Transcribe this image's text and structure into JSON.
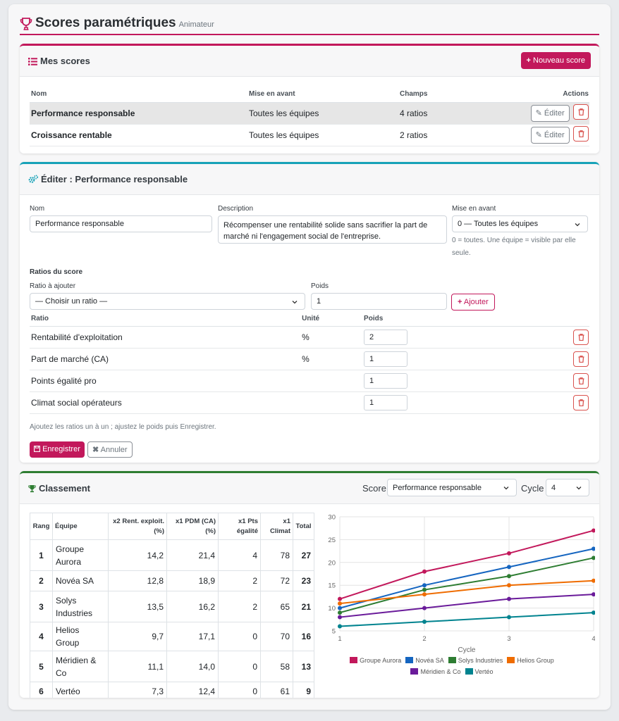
{
  "header": {
    "title": "Scores paramétriques",
    "subtitle": "Animateur"
  },
  "scores_card": {
    "title": "Mes scores",
    "new_button": "Nouveau score",
    "columns": [
      "Nom",
      "Mise en avant",
      "Champs",
      "Actions"
    ],
    "rows": [
      {
        "name": "Performance responsable",
        "highlight": "Toutes les équipes",
        "fields": "4 ratios",
        "edit": "Éditer",
        "selected": true
      },
      {
        "name": "Croissance rentable",
        "highlight": "Toutes les équipes",
        "fields": "2 ratios",
        "edit": "Éditer",
        "selected": false
      }
    ]
  },
  "edit_card": {
    "title": "Éditer : Performance responsable",
    "name_label": "Nom",
    "name_value": "Performance responsable",
    "description_label": "Description",
    "description_value": "Récompenser une rentabilité solide sans sacrifier la part de marché ni l'engagement social de l'entreprise.",
    "highlight_label": "Mise en avant",
    "highlight_value": "0 — Toutes les équipes",
    "highlight_help": "0 = toutes. Une équipe = visible par elle seule.",
    "ratios_title": "Ratios du score",
    "ratio_add_label": "Ratio à ajouter",
    "ratio_add_value": "— Choisir un ratio —",
    "weight_label": "Poids",
    "weight_value": "1",
    "add_button": "Ajouter",
    "columns": [
      "Ratio",
      "Unité",
      "Poids"
    ],
    "ratios": [
      {
        "name": "Rentabilité d'exploitation",
        "unit": "%",
        "weight": "2"
      },
      {
        "name": "Part de marché (CA)",
        "unit": "%",
        "weight": "1"
      },
      {
        "name": "Points égalité pro",
        "unit": "",
        "weight": "1"
      },
      {
        "name": "Climat social opérateurs",
        "unit": "",
        "weight": "1"
      }
    ],
    "hint": "Ajoutez les ratios un à un ; ajustez le poids puis Enregistrer.",
    "save_button": "Enregistrer",
    "cancel_button": "Annuler"
  },
  "ranking_card": {
    "title": "Classement",
    "score_label": "Score",
    "score_value": "Performance responsable",
    "cycle_label": "Cycle",
    "cycle_value": "4",
    "columns": [
      "Rang",
      "Équipe",
      "x2 Rent. exploit. (%)",
      "x1 PDM (CA) (%)",
      "x1 Pts égalité",
      "x1 Climat",
      "Total"
    ],
    "rows": [
      {
        "rank": "1",
        "team": "Groupe Aurora",
        "c1": "14,2",
        "c2": "21,4",
        "c3": "4",
        "c4": "78",
        "total": "27"
      },
      {
        "rank": "2",
        "team": "Novéa SA",
        "c1": "12,8",
        "c2": "18,9",
        "c3": "2",
        "c4": "72",
        "total": "23"
      },
      {
        "rank": "3",
        "team": "Solys Industries",
        "c1": "13,5",
        "c2": "16,2",
        "c3": "2",
        "c4": "65",
        "total": "21"
      },
      {
        "rank": "4",
        "team": "Helios Group",
        "c1": "9,7",
        "c2": "17,1",
        "c3": "0",
        "c4": "70",
        "total": "16"
      },
      {
        "rank": "5",
        "team": "Méridien & Co",
        "c1": "11,1",
        "c2": "14,0",
        "c3": "0",
        "c4": "58",
        "total": "13"
      },
      {
        "rank": "6",
        "team": "Vertéo",
        "c1": "7,3",
        "c2": "12,4",
        "c3": "0",
        "c4": "61",
        "total": "9"
      }
    ]
  },
  "chart_data": {
    "type": "line",
    "x": [
      1,
      2,
      3,
      4
    ],
    "xlabel": "Cycle",
    "ylabel": "",
    "xlim": [
      1,
      4
    ],
    "ylim": [
      5,
      30
    ],
    "yticks": [
      5,
      10,
      15,
      20,
      25,
      30
    ],
    "grid": true,
    "legend": "bottom",
    "series": [
      {
        "name": "Groupe Aurora",
        "color": "#c2185b",
        "values": [
          12,
          18,
          22,
          27
        ]
      },
      {
        "name": "Novéa SA",
        "color": "#1565c0",
        "values": [
          10,
          15,
          19,
          23
        ]
      },
      {
        "name": "Solys Industries",
        "color": "#2e7d32",
        "values": [
          9,
          14,
          17,
          21
        ]
      },
      {
        "name": "Helios Group",
        "color": "#ef6c00",
        "values": [
          11,
          13,
          15,
          16
        ]
      },
      {
        "name": "Méridien & Co",
        "color": "#6a1b9a",
        "values": [
          8,
          10,
          12,
          13
        ]
      },
      {
        "name": "Vertéo",
        "color": "#00838f",
        "values": [
          6,
          7,
          8,
          9
        ]
      }
    ]
  },
  "colors": {
    "accent": "#c2185b",
    "edit_border": "#17a2b8",
    "ranking_border": "#2e7d32",
    "danger": "#d9534f"
  },
  "icons": [
    "trophy-icon",
    "list-icon",
    "plus-icon",
    "pencil-icon",
    "trash-icon",
    "gears-icon",
    "chevron-down-icon",
    "save-icon",
    "close-icon"
  ]
}
